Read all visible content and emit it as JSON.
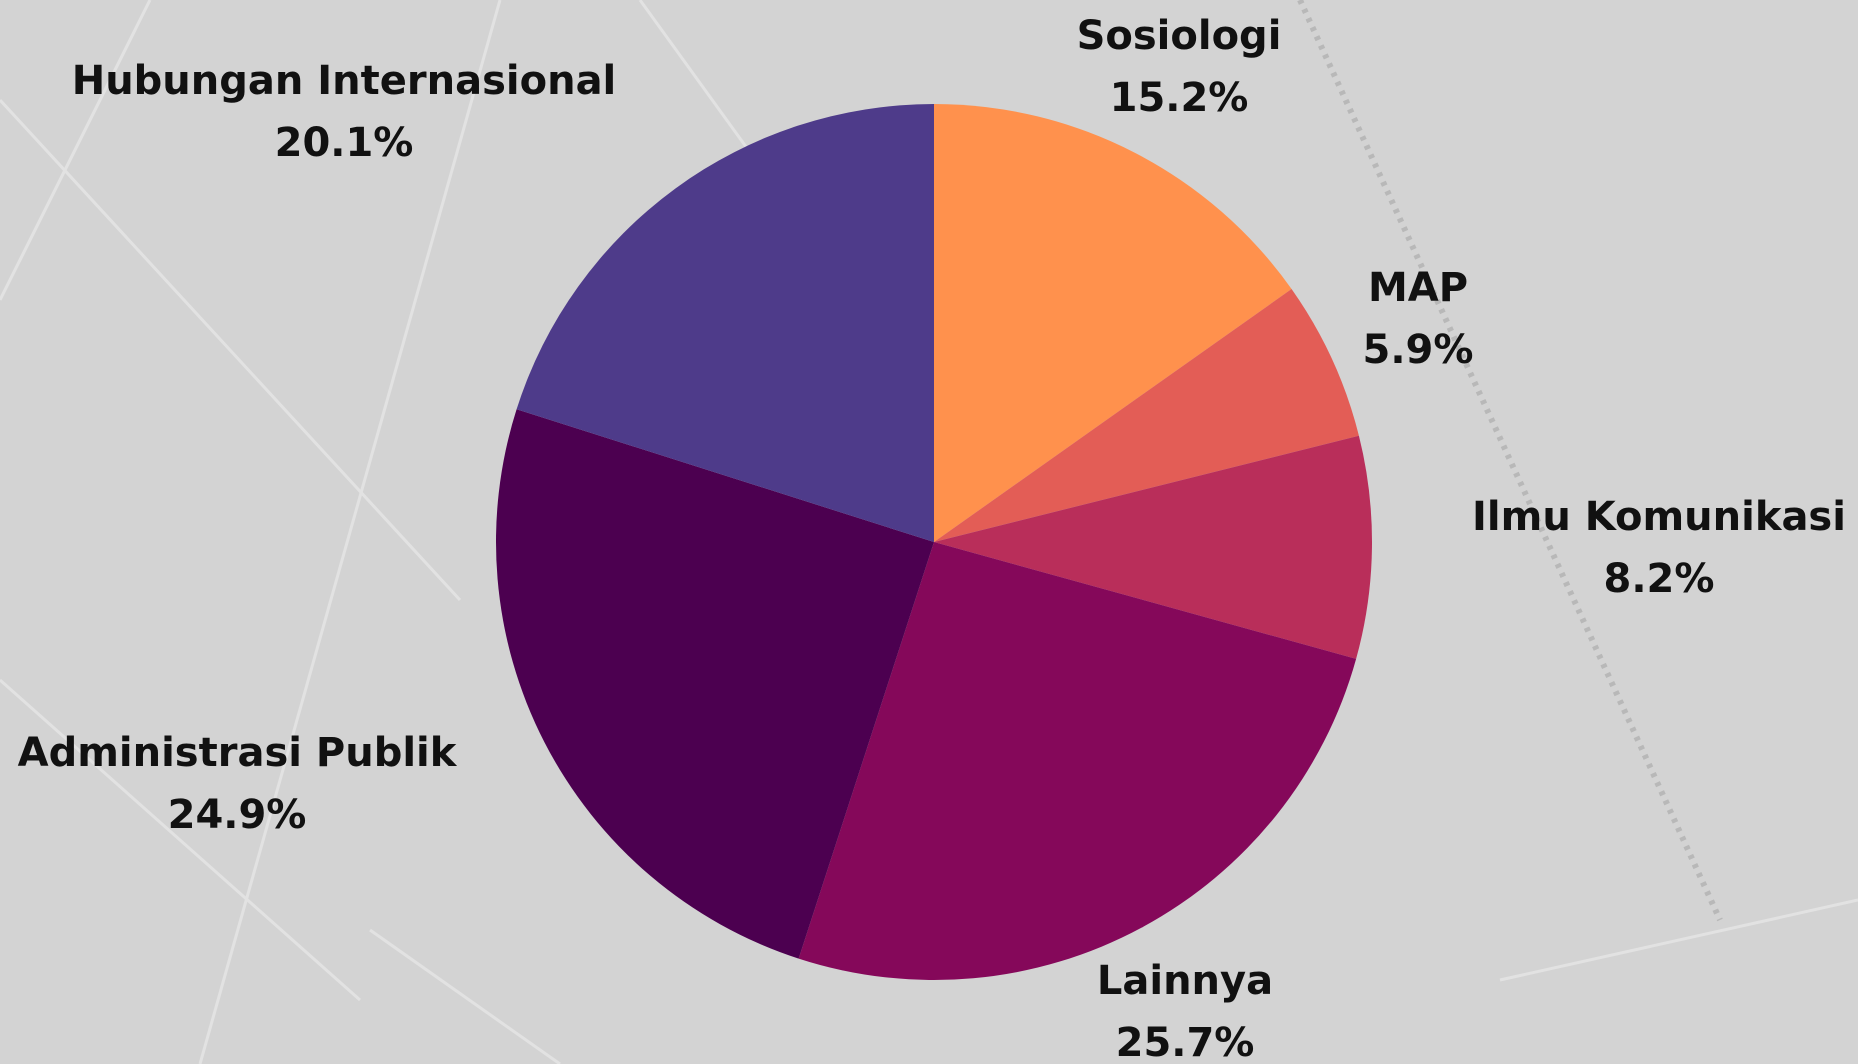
{
  "chart_data": {
    "type": "pie",
    "categories": [
      "Sosiologi",
      "MAP",
      "Ilmu Komunikasi",
      "Lainnya",
      "Administrasi Publik",
      "Hubungan Internasional"
    ],
    "values": [
      15.2,
      5.9,
      8.2,
      25.7,
      24.9,
      20.1
    ],
    "value_labels": [
      "15.2%",
      "5.9%",
      "8.2%",
      "25.7%",
      "24.9%",
      "20.1%"
    ],
    "colors": [
      "#ff914d",
      "#e35d56",
      "#b92e5a",
      "#85085a",
      "#4c0050",
      "#4e3b8a"
    ]
  }
}
